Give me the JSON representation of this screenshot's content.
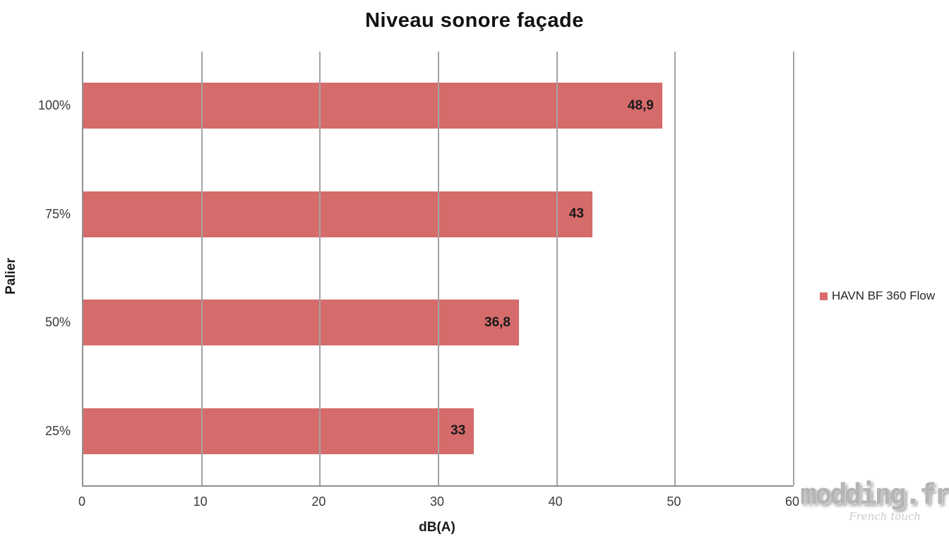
{
  "chart_data": {
    "type": "bar",
    "orientation": "horizontal",
    "title": "Niveau sonore façade",
    "xlabel": "dB(A)",
    "ylabel": "Palier",
    "categories": [
      "100%",
      "75%",
      "50%",
      "25%"
    ],
    "series": [
      {
        "name": "HAVN BF 360 Flow",
        "values": [
          48.9,
          43,
          36.8,
          33
        ],
        "value_labels": [
          "48,9",
          "43",
          "36,8",
          "33"
        ],
        "color": "#d66b6b"
      }
    ],
    "xlim": [
      0,
      60
    ],
    "x_ticks": [
      "0",
      "10",
      "20",
      "30",
      "40",
      "50",
      "60"
    ],
    "grid": "vertical-gridlines-on",
    "legend_position": "right"
  },
  "legend": {
    "items": [
      {
        "label": "HAVN BF 360 Flow",
        "color": "#d66b6b"
      }
    ]
  },
  "watermark": {
    "text": "modding.fr",
    "subtext": "French touch"
  }
}
